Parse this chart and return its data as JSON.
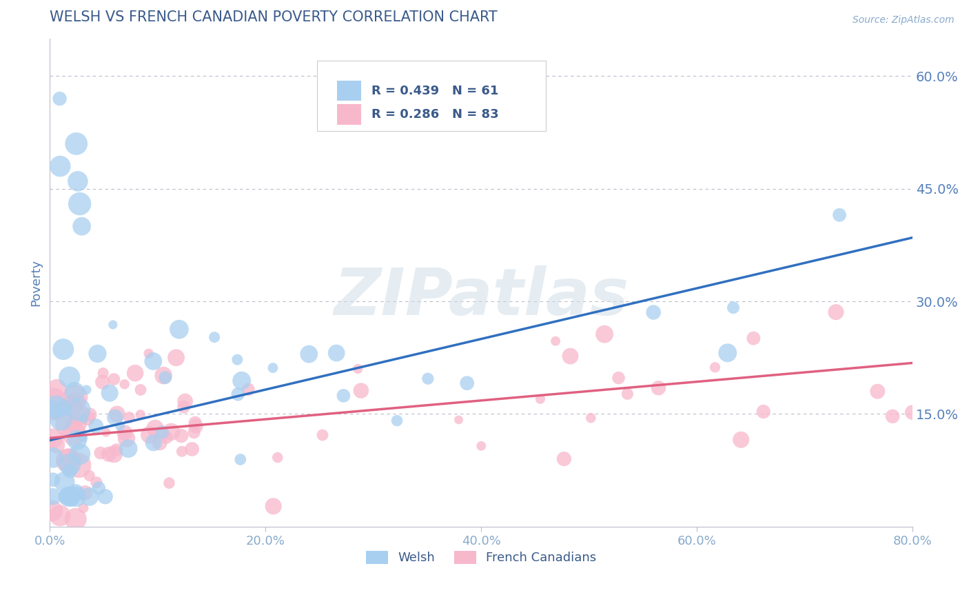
{
  "title": "WELSH VS FRENCH CANADIAN POVERTY CORRELATION CHART",
  "source": "Source: ZipAtlas.com",
  "ylabel": "Poverty",
  "xlim": [
    0.0,
    0.8
  ],
  "ylim": [
    0.0,
    0.65
  ],
  "yticks": [
    0.15,
    0.3,
    0.45,
    0.6
  ],
  "ytick_labels": [
    "15.0%",
    "30.0%",
    "45.0%",
    "60.0%"
  ],
  "xticks": [
    0.0,
    0.2,
    0.4,
    0.6,
    0.8
  ],
  "xtick_labels": [
    "0.0%",
    "20.0%",
    "40.0%",
    "60.0%",
    "80.0%"
  ],
  "welsh_color": "#a8cff0",
  "french_color": "#f7b8cc",
  "welsh_line_color": "#3070c0",
  "french_line_color": "#e06080",
  "welsh_R": 0.439,
  "welsh_N": 61,
  "french_R": 0.286,
  "french_N": 83,
  "background_color": "#ffffff",
  "grid_color": "#bbbbcc",
  "title_color": "#3a5a8a",
  "axis_label_color": "#5580bb",
  "tick_color": "#88aacc",
  "legend_text_color": "#3a5a8a",
  "watermark": "ZIPatlas",
  "welsh_line_x0": 0.0,
  "welsh_line_x1": 0.8,
  "welsh_line_y0": 0.115,
  "welsh_line_y1": 0.385,
  "french_line_x0": 0.0,
  "french_line_x1": 0.8,
  "french_line_y0": 0.118,
  "french_line_y1": 0.218
}
